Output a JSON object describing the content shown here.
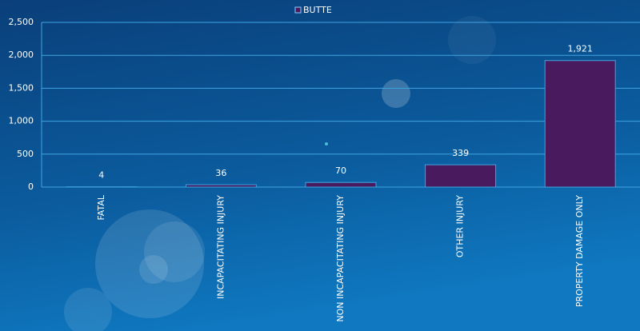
{
  "chart_data": {
    "type": "bar",
    "categories": [
      "FATAL",
      "INCAPACITATING INJURY",
      "NON INCAPACITATING INJURY",
      "OTHER INJURY",
      "PROPERTY DAMAGE ONLY"
    ],
    "series": [
      {
        "name": "BUTTE",
        "color": "#4a1a5e",
        "values": [
          4,
          36,
          70,
          339,
          1921
        ],
        "value_labels": [
          "4",
          "36",
          "70",
          "339",
          "1,921"
        ]
      }
    ],
    "ylim": [
      0,
      2500
    ],
    "yticks": [
      0,
      500,
      {
        "value": 1000,
        "label": "1,000"
      },
      {
        "value": 1500,
        "label": "1,500"
      },
      {
        "value": 2000,
        "label": "2,000"
      },
      {
        "value": 2500,
        "label": "2,500"
      }
    ],
    "grid": true,
    "legend": "top"
  }
}
